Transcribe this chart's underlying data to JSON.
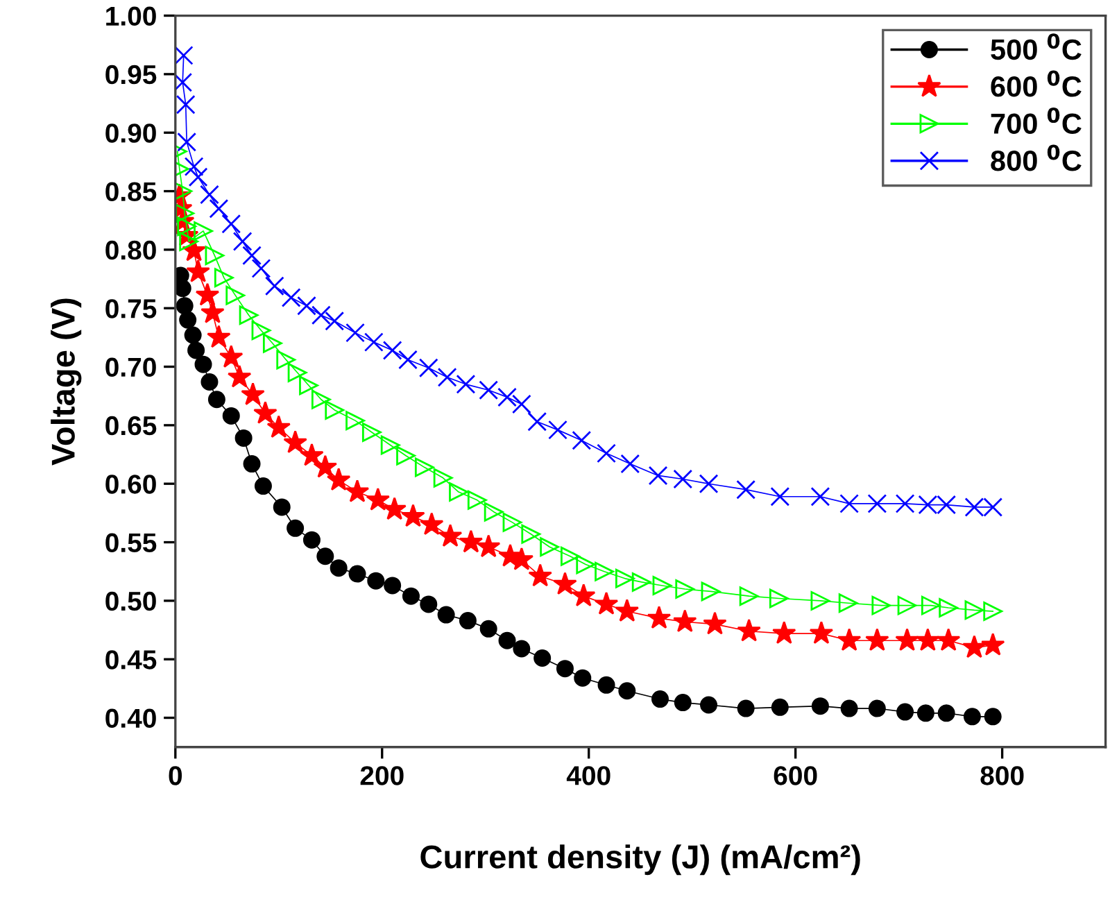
{
  "chart_data": {
    "type": "line",
    "xlabel": "Current density (J) (mA/cm²)",
    "ylabel": "Voltage (V)",
    "xlim": [
      0,
      900
    ],
    "ylim": [
      0.375,
      1.0
    ],
    "xticks": [
      0,
      200,
      400,
      600,
      800
    ],
    "yticks": [
      {
        "value": 0.4,
        "label": "0.40"
      },
      {
        "value": 0.45,
        "label": "0.45"
      },
      {
        "value": 0.5,
        "label": "0.50"
      },
      {
        "value": 0.55,
        "label": "0.55"
      },
      {
        "value": 0.6,
        "label": "0.60"
      },
      {
        "value": 0.65,
        "label": "0.65"
      },
      {
        "value": 0.7,
        "label": "0.70"
      },
      {
        "value": 0.75,
        "label": "0.75"
      },
      {
        "value": 0.8,
        "label": "0.80"
      },
      {
        "value": 0.85,
        "label": "0.85"
      },
      {
        "value": 0.9,
        "label": "0.90"
      },
      {
        "value": 0.95,
        "label": "0.95"
      },
      {
        "value": 1.0,
        "label": "1.00"
      }
    ],
    "grid": false,
    "legend": "top right",
    "line_style": "solid",
    "series": [
      {
        "name": "500 $^{0}$C",
        "color": "#000000",
        "marker": "circle",
        "x": [
          5,
          7,
          9,
          12,
          17,
          20,
          27,
          33,
          40,
          54,
          66,
          74,
          85,
          103,
          116,
          132,
          145,
          158,
          176,
          194,
          210,
          228,
          245,
          262,
          283,
          303,
          321,
          335,
          355,
          377,
          394,
          417,
          437,
          469,
          491,
          516,
          552,
          585,
          624,
          652,
          679,
          706,
          726,
          746,
          771,
          791
        ],
        "values": [
          0.778,
          0.767,
          0.752,
          0.74,
          0.727,
          0.714,
          0.702,
          0.687,
          0.672,
          0.658,
          0.639,
          0.617,
          0.598,
          0.58,
          0.562,
          0.552,
          0.538,
          0.528,
          0.523,
          0.517,
          0.513,
          0.504,
          0.497,
          0.488,
          0.483,
          0.476,
          0.466,
          0.459,
          0.451,
          0.442,
          0.434,
          0.428,
          0.423,
          0.416,
          0.413,
          0.411,
          0.408,
          0.409,
          0.41,
          0.408,
          0.408,
          0.405,
          0.404,
          0.404,
          0.401,
          0.401
        ]
      },
      {
        "name": "600 $^{0}$C",
        "color": "#ff0000",
        "marker": "star",
        "x": [
          4,
          5,
          7,
          11,
          18,
          22,
          31,
          36,
          42,
          54,
          62,
          75,
          87,
          100,
          116,
          132,
          145,
          158,
          176,
          196,
          212,
          230,
          248,
          266,
          286,
          303,
          324,
          335,
          353,
          377,
          395,
          417,
          437,
          468,
          493,
          522,
          555,
          589,
          625,
          652,
          679,
          708,
          728,
          748,
          773,
          791
        ],
        "values": [
          0.846,
          0.835,
          0.824,
          0.812,
          0.799,
          0.781,
          0.761,
          0.746,
          0.725,
          0.708,
          0.691,
          0.676,
          0.66,
          0.648,
          0.635,
          0.624,
          0.614,
          0.603,
          0.593,
          0.586,
          0.578,
          0.572,
          0.565,
          0.555,
          0.55,
          0.546,
          0.538,
          0.535,
          0.521,
          0.514,
          0.504,
          0.497,
          0.491,
          0.485,
          0.482,
          0.48,
          0.474,
          0.472,
          0.472,
          0.466,
          0.466,
          0.466,
          0.466,
          0.466,
          0.46,
          0.462
        ]
      },
      {
        "name": "700 $^{0}$C",
        "color": "#00ff00",
        "marker": "triangle",
        "x": [
          2,
          4,
          7,
          9,
          11,
          13,
          27,
          38,
          47,
          58,
          71,
          83,
          94,
          107,
          118,
          129,
          141,
          154,
          174,
          190,
          208,
          223,
          241,
          259,
          274,
          292,
          308,
          326,
          344,
          362,
          382,
          397,
          415,
          435,
          451,
          471,
          493,
          518,
          555,
          584,
          624,
          651,
          683,
          708,
          731,
          748,
          773,
          791
        ],
        "values": [
          0.884,
          0.869,
          0.85,
          0.831,
          0.82,
          0.807,
          0.816,
          0.795,
          0.776,
          0.761,
          0.744,
          0.731,
          0.72,
          0.706,
          0.695,
          0.684,
          0.672,
          0.663,
          0.654,
          0.644,
          0.633,
          0.624,
          0.614,
          0.605,
          0.593,
          0.586,
          0.576,
          0.567,
          0.557,
          0.546,
          0.538,
          0.531,
          0.525,
          0.519,
          0.516,
          0.513,
          0.51,
          0.508,
          0.504,
          0.502,
          0.5,
          0.498,
          0.496,
          0.496,
          0.496,
          0.494,
          0.492,
          0.491
        ]
      },
      {
        "name": "800 $^{0}$C",
        "color": "#0000ff",
        "marker": "cross",
        "x": [
          8,
          7,
          10,
          11,
          18,
          22,
          33,
          42,
          54,
          65,
          74,
          83,
          96,
          112,
          127,
          141,
          154,
          174,
          192,
          210,
          225,
          245,
          263,
          281,
          303,
          321,
          335,
          350,
          370,
          393,
          417,
          440,
          467,
          491,
          516,
          552,
          585,
          624,
          652,
          679,
          706,
          728,
          746,
          773,
          791
        ],
        "values": [
          0.966,
          0.943,
          0.924,
          0.892,
          0.871,
          0.862,
          0.847,
          0.835,
          0.822,
          0.807,
          0.795,
          0.784,
          0.769,
          0.759,
          0.752,
          0.744,
          0.739,
          0.729,
          0.721,
          0.714,
          0.706,
          0.699,
          0.691,
          0.685,
          0.68,
          0.674,
          0.668,
          0.653,
          0.646,
          0.637,
          0.626,
          0.617,
          0.607,
          0.604,
          0.6,
          0.595,
          0.589,
          0.589,
          0.583,
          0.583,
          0.583,
          0.582,
          0.582,
          0.58,
          0.58
        ]
      }
    ]
  }
}
